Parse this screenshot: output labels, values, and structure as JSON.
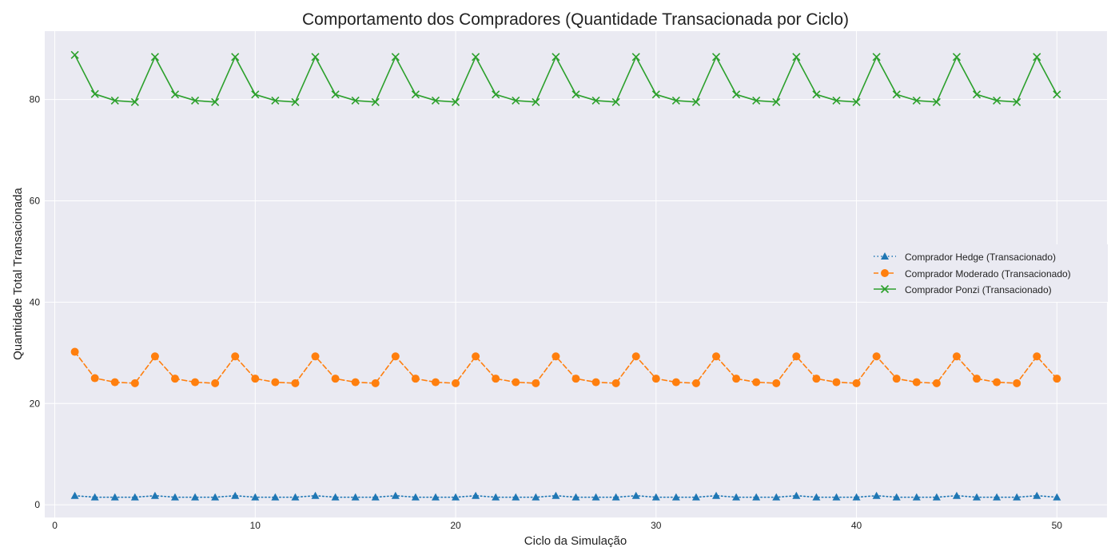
{
  "chart_data": {
    "type": "line",
    "title": "Comportamento dos Compradores (Quantidade Transacionada por Ciclo)",
    "xlabel": "Ciclo da Simulação",
    "ylabel": "Quantidade Total Transacionada",
    "xlim": [
      -0.5,
      52.5
    ],
    "ylim": [
      -2.5,
      93.5
    ],
    "xticks": [
      0,
      10,
      20,
      30,
      40,
      50
    ],
    "yticks": [
      0,
      20,
      40,
      60,
      80
    ],
    "grid": true,
    "legend_position": "center-right",
    "x": [
      1,
      2,
      3,
      4,
      5,
      6,
      7,
      8,
      9,
      10,
      11,
      12,
      13,
      14,
      15,
      16,
      17,
      18,
      19,
      20,
      21,
      22,
      23,
      24,
      25,
      26,
      27,
      28,
      29,
      30,
      31,
      32,
      33,
      34,
      35,
      36,
      37,
      38,
      39,
      40,
      41,
      42,
      43,
      44,
      45,
      46,
      47,
      48,
      49,
      50
    ],
    "series": [
      {
        "name": "Comprador Hedge (Transacionado)",
        "color": "#1f77b4",
        "line_style": "dotted",
        "marker": "triangle",
        "values": [
          1.8,
          1.5,
          1.5,
          1.5,
          1.8,
          1.5,
          1.5,
          1.5,
          1.8,
          1.5,
          1.5,
          1.5,
          1.8,
          1.5,
          1.5,
          1.5,
          1.8,
          1.5,
          1.5,
          1.5,
          1.8,
          1.5,
          1.5,
          1.5,
          1.8,
          1.5,
          1.5,
          1.5,
          1.8,
          1.5,
          1.5,
          1.5,
          1.8,
          1.5,
          1.5,
          1.5,
          1.8,
          1.5,
          1.5,
          1.5,
          1.8,
          1.5,
          1.5,
          1.5,
          1.8,
          1.5,
          1.5,
          1.5,
          1.8,
          1.5
        ]
      },
      {
        "name": "Comprador Moderado (Transacionado)",
        "color": "#ff7f0e",
        "line_style": "dashed",
        "marker": "circle",
        "values": [
          30.2,
          25.0,
          24.2,
          24.0,
          29.3,
          24.9,
          24.2,
          24.0,
          29.3,
          24.9,
          24.2,
          24.0,
          29.3,
          24.9,
          24.2,
          24.0,
          29.3,
          24.9,
          24.2,
          24.0,
          29.3,
          24.9,
          24.2,
          24.0,
          29.3,
          24.9,
          24.2,
          24.0,
          29.3,
          24.9,
          24.2,
          24.0,
          29.3,
          24.9,
          24.2,
          24.0,
          29.3,
          24.9,
          24.2,
          24.0,
          29.3,
          24.9,
          24.2,
          24.0,
          29.3,
          24.9,
          24.2,
          24.0,
          29.3,
          24.9
        ]
      },
      {
        "name": "Comprador Ponzi (Transacionado)",
        "color": "#2ca02c",
        "line_style": "solid",
        "marker": "x",
        "values": [
          88.8,
          81.1,
          79.8,
          79.5,
          88.4,
          81.0,
          79.8,
          79.5,
          88.4,
          81.0,
          79.8,
          79.5,
          88.4,
          81.0,
          79.8,
          79.5,
          88.4,
          81.0,
          79.8,
          79.5,
          88.4,
          81.0,
          79.8,
          79.5,
          88.4,
          81.0,
          79.8,
          79.5,
          88.4,
          81.0,
          79.8,
          79.5,
          88.4,
          81.0,
          79.8,
          79.5,
          88.4,
          81.0,
          79.8,
          79.5,
          88.4,
          81.0,
          79.8,
          79.5,
          88.4,
          81.0,
          79.8,
          79.5,
          88.4,
          81.0
        ]
      }
    ]
  },
  "colors": {
    "plot_background": "#eaeaf2",
    "grid": "#ffffff"
  }
}
